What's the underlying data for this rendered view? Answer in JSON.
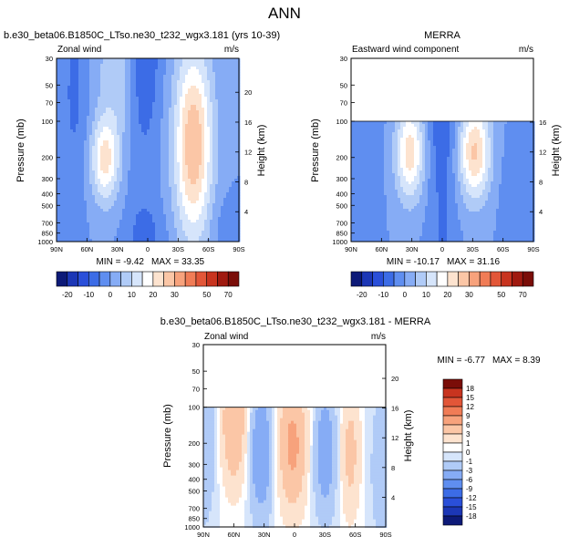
{
  "page_title": "ANN",
  "colorbar_levels": [
    -20,
    -15,
    -10,
    -5,
    0,
    5,
    10,
    15,
    20,
    25,
    30,
    35,
    40,
    50,
    60,
    70
  ],
  "colorbar_colors": [
    "#0d1a78",
    "#1c37b6",
    "#2a4fd9",
    "#3c6ce6",
    "#5f8ef0",
    "#86acf5",
    "#b0cbf7",
    "#d6e5fb",
    "#ffffff",
    "#fde3cf",
    "#fbc6a6",
    "#f7a27c",
    "#f07c56",
    "#e25638",
    "#c8341f",
    "#a01a10",
    "#7a0d08"
  ],
  "diff_levels": [
    -18,
    -15,
    -12,
    -9,
    -6,
    -3,
    -1,
    0,
    1,
    3,
    6,
    9,
    12,
    15,
    18
  ],
  "diff_colors": [
    "#0d1a78",
    "#1c37b6",
    "#2a4fd9",
    "#3c6ce6",
    "#5f8ef0",
    "#86acf5",
    "#b0cbf7",
    "#d6e5fb",
    "#ffffff",
    "#fde3cf",
    "#fbc6a6",
    "#f7a27c",
    "#f07c56",
    "#e25638",
    "#c8341f",
    "#7a0d08"
  ],
  "chart_data": [
    {
      "type": "heatmap",
      "title": "b.e30_beta06.B1850C_LTso.ne30_t232_wgx3.181 (yrs 10-39)",
      "left_label": "Zonal wind",
      "units": "m/s",
      "xlabel": "",
      "ylabel": "Pressure (mb)",
      "y2label": "Height (km)",
      "x_ticks": [
        "90N",
        "60N",
        "30N",
        "0",
        "30S",
        "60S",
        "90S"
      ],
      "y_ticks": [
        30,
        50,
        70,
        100,
        200,
        300,
        400,
        500,
        700,
        850,
        1000
      ],
      "height_ticks": [
        4,
        8,
        12,
        16,
        20
      ],
      "ylim": [
        1000,
        30
      ],
      "min_label": "MIN = -9.42",
      "max_label": "MAX = 33.35"
    },
    {
      "type": "heatmap",
      "title": "MERRA",
      "left_label": "Eastward wind component",
      "units": "m/s",
      "xlabel": "",
      "ylabel": "Pressure (mb)",
      "y2label": "Height (km)",
      "x_ticks": [
        "90N",
        "60N",
        "30N",
        "0",
        "30S",
        "60S",
        "90S"
      ],
      "y_ticks": [
        30,
        50,
        70,
        100,
        200,
        300,
        400,
        500,
        700,
        850,
        1000
      ],
      "height_ticks": [
        4,
        8,
        12,
        16
      ],
      "ylim": [
        1000,
        30
      ],
      "min_label": "MIN = -10.17",
      "max_label": "MAX = 31.16"
    },
    {
      "type": "heatmap",
      "title": "b.e30_beta06.B1850C_LTso.ne30_t232_wgx3.181 - MERRA",
      "left_label": "Zonal wind",
      "units": "m/s",
      "xlabel": "",
      "ylabel": "Pressure (mb)",
      "y2label": "Height (km)",
      "x_ticks": [
        "90N",
        "60N",
        "30N",
        "0",
        "30S",
        "60S",
        "90S"
      ],
      "y_ticks": [
        30,
        50,
        70,
        100,
        200,
        300,
        400,
        500,
        700,
        850,
        1000
      ],
      "height_ticks": [
        4,
        8,
        12,
        16,
        20
      ],
      "ylim": [
        1000,
        30
      ],
      "min_label": "MIN = -6.77",
      "max_label": "MAX =  8.39"
    }
  ],
  "colorbar_ticks": [
    "-20",
    "-10",
    "0",
    "10",
    "20",
    "30",
    "50",
    "70"
  ],
  "diff_colorbar_ticks": [
    "18",
    "15",
    "12",
    "9",
    "6",
    "3",
    "1",
    "0",
    "-1",
    "-3",
    "-6",
    "-9",
    "-12",
    "-15",
    "-18"
  ]
}
